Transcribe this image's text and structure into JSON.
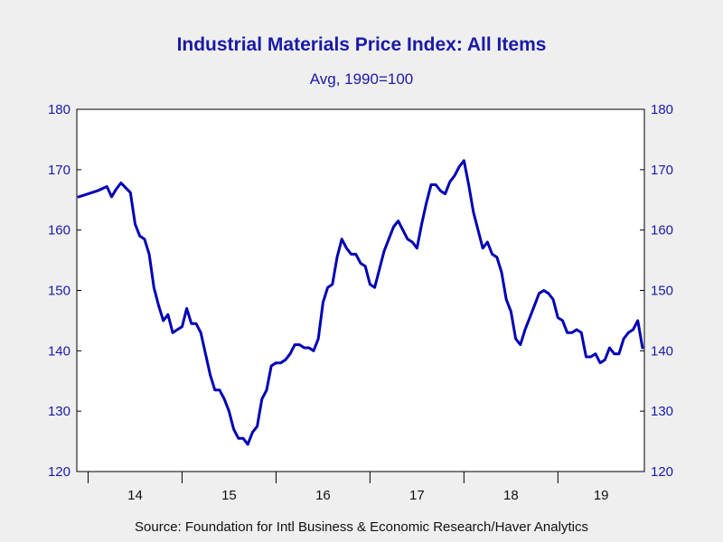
{
  "chart_data": {
    "type": "line",
    "title": "Industrial Materials Price Index: All Items",
    "subtitle": "Avg, 1990=100",
    "source": "Source:  Foundation for Intl Business & Economic Research/Haver Analytics",
    "xlabel": "",
    "ylabel": "",
    "ylim": [
      120,
      180
    ],
    "yticks": [
      120,
      130,
      140,
      150,
      160,
      170,
      180
    ],
    "x_categories": [
      "14",
      "15",
      "16",
      "17",
      "18",
      "19"
    ],
    "x_range": [
      2013.88,
      2019.92
    ],
    "grid": false,
    "line_color": "#0000b4",
    "text_color": "#1a1aa6",
    "series": [
      {
        "x": [
          2013.9,
          2014.0,
          2014.1,
          2014.2,
          2014.25,
          2014.3,
          2014.35,
          2014.4,
          2014.45,
          2014.5,
          2014.55,
          2014.6,
          2014.65,
          2014.7,
          2014.75,
          2014.8,
          2014.85,
          2014.9,
          2014.95,
          2015.0,
          2015.05,
          2015.1,
          2015.15,
          2015.2,
          2015.25,
          2015.3,
          2015.35,
          2015.4,
          2015.45,
          2015.5,
          2015.55,
          2015.6,
          2015.65,
          2015.7,
          2015.75,
          2015.8,
          2015.85,
          2015.9,
          2015.95,
          2016.0,
          2016.05,
          2016.1,
          2016.15,
          2016.2,
          2016.25,
          2016.3,
          2016.35,
          2016.4,
          2016.45,
          2016.5,
          2016.55,
          2016.6,
          2016.65,
          2016.7,
          2016.75,
          2016.8,
          2016.85,
          2016.9,
          2016.95,
          2017.0,
          2017.05,
          2017.1,
          2017.15,
          2017.2,
          2017.25,
          2017.3,
          2017.35,
          2017.4,
          2017.45,
          2017.5,
          2017.55,
          2017.6,
          2017.65,
          2017.7,
          2017.75,
          2017.8,
          2017.85,
          2017.9,
          2017.95,
          2018.0,
          2018.05,
          2018.1,
          2018.15,
          2018.2,
          2018.25,
          2018.3,
          2018.35,
          2018.4,
          2018.45,
          2018.5,
          2018.55,
          2018.6,
          2018.65,
          2018.7,
          2018.75,
          2018.8,
          2018.85,
          2018.9,
          2018.95,
          2019.0,
          2019.05,
          2019.1,
          2019.15,
          2019.2,
          2019.25,
          2019.3,
          2019.35,
          2019.4,
          2019.45,
          2019.5,
          2019.55,
          2019.6,
          2019.65,
          2019.7,
          2019.75,
          2019.8,
          2019.85,
          2019.9
        ],
        "values": [
          165.5,
          166.0,
          166.5,
          167.2,
          165.5,
          166.8,
          167.8,
          167.0,
          166.2,
          161.0,
          159.0,
          158.5,
          156.0,
          150.5,
          147.5,
          145.0,
          146.0,
          143.0,
          143.5,
          144.0,
          147.0,
          144.5,
          144.5,
          143.0,
          139.5,
          136.0,
          133.5,
          133.5,
          132.0,
          130.0,
          127.0,
          125.5,
          125.5,
          124.5,
          126.5,
          127.5,
          132.0,
          133.5,
          137.5,
          138.0,
          138.0,
          138.5,
          139.5,
          141.0,
          141.0,
          140.5,
          140.5,
          140.0,
          142.0,
          148.0,
          150.5,
          151.0,
          155.5,
          158.5,
          157.0,
          156.0,
          156.0,
          154.5,
          154.0,
          151.0,
          150.5,
          153.5,
          156.5,
          158.5,
          160.5,
          161.5,
          160.0,
          158.5,
          158.0,
          157.0,
          161.0,
          164.5,
          167.5,
          167.5,
          166.5,
          166.0,
          168.0,
          169.0,
          170.5,
          171.5,
          167.5,
          163.0,
          160.0,
          157.0,
          158.0,
          156.0,
          155.5,
          153.0,
          148.5,
          146.5,
          142.0,
          141.0,
          143.5,
          145.5,
          147.5,
          149.5,
          150.0,
          149.5,
          148.5,
          145.5,
          145.0,
          143.0,
          143.0,
          143.5,
          143.0,
          139.0,
          139.0,
          139.5,
          138.0,
          138.5,
          140.5,
          139.5,
          139.5,
          142.0,
          143.0,
          143.5,
          145.0,
          140.5
        ]
      }
    ]
  }
}
